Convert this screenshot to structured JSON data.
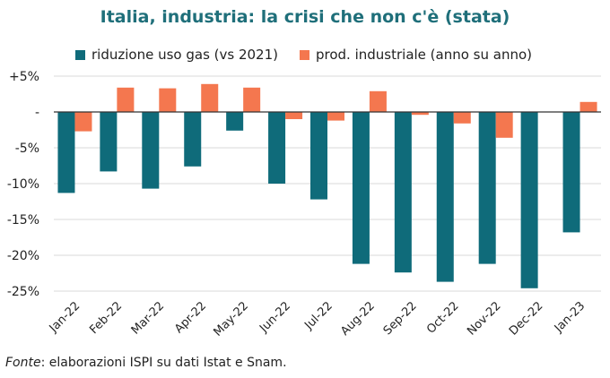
{
  "chart_data": {
    "type": "bar",
    "title": "Italia, industria: la crisi che non c'è (stata)",
    "categories": [
      "Jan-22",
      "Feb-22",
      "Mar-22",
      "Apr-22",
      "May-22",
      "Jun-22",
      "Jul-22",
      "Aug-22",
      "Sep-22",
      "Oct-22",
      "Nov-22",
      "Dec-22",
      "Jan-23"
    ],
    "series": [
      {
        "name": "riduzione uso gas (vs 2021)",
        "color": "#0f6b7a",
        "values": [
          -11.3,
          -8.3,
          -10.7,
          -7.6,
          -2.6,
          -10.0,
          -12.2,
          -21.2,
          -22.4,
          -23.7,
          -21.2,
          -24.6,
          -16.8
        ]
      },
      {
        "name": "prod. industriale (anno su anno)",
        "color": "#f4774f",
        "values": [
          -2.7,
          3.4,
          3.3,
          3.9,
          3.4,
          -1.0,
          -1.2,
          2.9,
          -0.4,
          -1.6,
          -3.6,
          null,
          1.4
        ]
      }
    ],
    "ylim": [
      -25,
      5
    ],
    "yticks": [
      5,
      0,
      -5,
      -10,
      -15,
      -20,
      -25
    ],
    "ytick_labels": [
      "+5%",
      "-",
      "-5%",
      "-10%",
      "-15%",
      "-20%",
      "-25%"
    ],
    "grid": true,
    "legend": "top"
  },
  "source": {
    "label": "Fonte",
    "text": ": elaborazioni ISPI su dati Istat e Snam."
  }
}
